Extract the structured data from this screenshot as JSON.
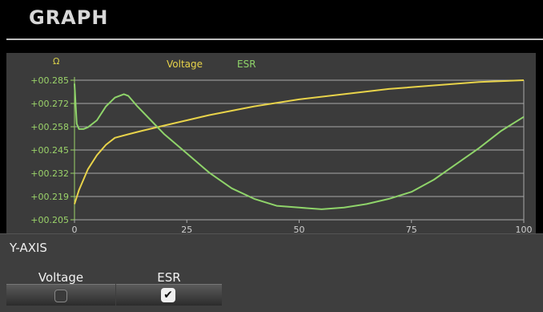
{
  "header": {
    "title": "GRAPH"
  },
  "chart": {
    "unit_label": "Ω",
    "legend": [
      {
        "name": "Voltage",
        "color": "#e8d34a"
      },
      {
        "name": "ESR",
        "color": "#8fd46a"
      }
    ],
    "ticks_y": [
      "+00.285",
      "+00.272",
      "+00.258",
      "+00.245",
      "+00.232",
      "+00.219",
      "+00.205"
    ],
    "ticks_x": [
      "0",
      "25",
      "50",
      "75",
      "100"
    ]
  },
  "chart_data": {
    "type": "line",
    "ylim": [
      0.205,
      0.285
    ],
    "xlim": [
      0,
      100
    ],
    "grid": true,
    "series": [
      {
        "name": "Voltage",
        "color": "#e8d34a",
        "x": [
          0,
          1,
          2,
          3,
          5,
          7,
          9,
          12,
          15,
          20,
          25,
          30,
          40,
          50,
          60,
          70,
          80,
          90,
          100
        ],
        "y": [
          0.214,
          0.222,
          0.228,
          0.234,
          0.242,
          0.248,
          0.252,
          0.254,
          0.256,
          0.259,
          0.262,
          0.265,
          0.27,
          0.274,
          0.277,
          0.28,
          0.282,
          0.284,
          0.285
        ]
      },
      {
        "name": "ESR",
        "color": "#8fd46a",
        "x": [
          0,
          0.5,
          1,
          2,
          3,
          5,
          7,
          9,
          11,
          12,
          14,
          17,
          20,
          25,
          30,
          35,
          40,
          45,
          50,
          55,
          60,
          65,
          70,
          75,
          80,
          85,
          90,
          95,
          100
        ],
        "y": [
          0.283,
          0.26,
          0.257,
          0.257,
          0.258,
          0.262,
          0.27,
          0.275,
          0.277,
          0.276,
          0.27,
          0.262,
          0.254,
          0.243,
          0.232,
          0.223,
          0.217,
          0.213,
          0.212,
          0.211,
          0.212,
          0.214,
          0.217,
          0.221,
          0.228,
          0.237,
          0.246,
          0.256,
          0.264
        ]
      }
    ]
  },
  "yaxis": {
    "title": "Y-AXIS",
    "options": [
      {
        "label": "Voltage",
        "checked": false
      },
      {
        "label": "ESR",
        "checked": true
      }
    ]
  }
}
